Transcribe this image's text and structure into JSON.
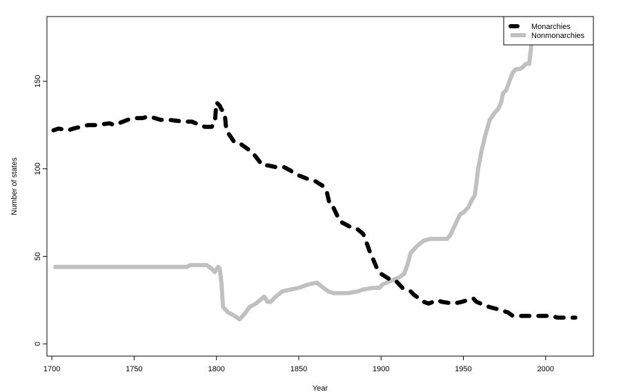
{
  "chart_data": {
    "type": "line",
    "title": "",
    "xlabel": "Year",
    "ylabel": "Number of states",
    "xlim": [
      1697,
      2029
    ],
    "ylim": [
      -7,
      187
    ],
    "x_ticks": [
      1700,
      1750,
      1800,
      1850,
      1900,
      1950,
      2000
    ],
    "y_ticks": [
      0,
      50,
      100,
      150
    ],
    "grid": false,
    "legend": {
      "placement": "top-right",
      "entries": [
        "Monarchies",
        "Nonmonarchies"
      ]
    },
    "series": [
      {
        "name": "Monarchies",
        "color": "#000000",
        "style": "dashed",
        "x": [
          1701,
          1704,
          1710,
          1713,
          1722,
          1727,
          1735,
          1738,
          1746,
          1750,
          1755,
          1759,
          1766,
          1771,
          1780,
          1785,
          1790,
          1793,
          1797,
          1799,
          1800,
          1802,
          1803,
          1805,
          1806,
          1811,
          1815,
          1821,
          1823,
          1828,
          1831,
          1836,
          1841,
          1845,
          1848,
          1856,
          1860,
          1865,
          1867,
          1869,
          1871,
          1875,
          1877,
          1881,
          1885,
          1889,
          1890,
          1893,
          1894,
          1898,
          1900,
          1905,
          1909,
          1913,
          1918,
          1920,
          1926,
          1929,
          1934,
          1937,
          1944,
          1949,
          1956,
          1958,
          1966,
          1970,
          1977,
          1980,
          1989,
          1993,
          2004,
          2007,
          2014,
          2018
        ],
        "values": [
          122,
          123,
          122,
          123,
          125,
          125,
          126,
          125,
          128,
          129,
          129,
          130,
          128,
          128,
          127,
          127,
          125,
          124,
          124,
          126,
          138,
          136,
          134,
          132,
          122,
          115,
          114,
          110,
          108,
          102,
          102,
          101,
          101,
          99,
          97,
          94,
          93,
          90,
          87,
          79,
          78,
          70,
          69,
          67,
          66,
          63,
          61,
          53,
          51,
          42,
          40,
          37,
          36,
          32,
          30,
          28,
          24,
          23,
          25,
          24,
          23,
          24,
          26,
          24,
          21,
          20,
          18,
          16,
          16,
          16,
          16,
          15,
          15,
          15
        ]
      },
      {
        "name": "Nonmonarchies",
        "color": "#c0c0c0",
        "style": "solid",
        "x": [
          1701,
          1720,
          1750,
          1782,
          1784,
          1794,
          1797,
          1799,
          1801,
          1802,
          1803,
          1804,
          1807,
          1811,
          1814,
          1817,
          1820,
          1824,
          1829,
          1831,
          1833,
          1836,
          1840,
          1845,
          1850,
          1856,
          1861,
          1865,
          1868,
          1871,
          1880,
          1886,
          1889,
          1895,
          1899,
          1901,
          1906,
          1911,
          1914,
          1916,
          1918,
          1922,
          1926,
          1930,
          1935,
          1940,
          1942,
          1944,
          1946,
          1948,
          1950,
          1953,
          1955,
          1957,
          1959,
          1961,
          1963,
          1966,
          1969,
          1971,
          1973,
          1974,
          1976,
          1978,
          1980,
          1982,
          1984,
          1986,
          1988,
          1990,
          1991,
          1992,
          1993
        ],
        "values": [
          44,
          44,
          44,
          44,
          45,
          45,
          43,
          41,
          44,
          43,
          35,
          21,
          18,
          16,
          14,
          17,
          21,
          23,
          27,
          24,
          24,
          27,
          30,
          31,
          32,
          34,
          35,
          32,
          30,
          29,
          29,
          30,
          31,
          32,
          32,
          34,
          36,
          38,
          40,
          45,
          52,
          56,
          59,
          60,
          60,
          60,
          62,
          66,
          70,
          74,
          75,
          78,
          82,
          85,
          100,
          110,
          118,
          128,
          132,
          134,
          138,
          143,
          145,
          150,
          155,
          157,
          157,
          158,
          160,
          160,
          168,
          178,
          186
        ]
      }
    ]
  }
}
